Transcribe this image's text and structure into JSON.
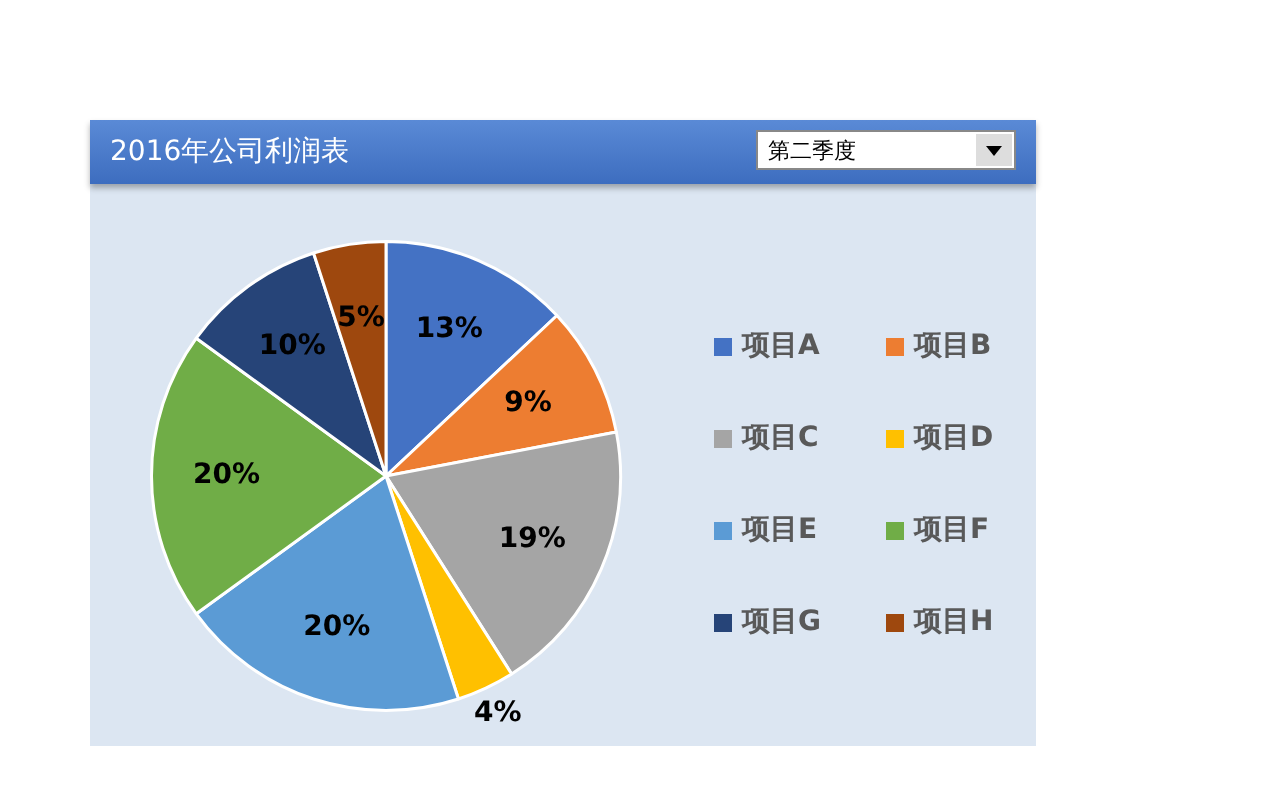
{
  "chart_data": {
    "type": "pie",
    "title": "2016年公司利润表",
    "annotations": [
      "第二季度"
    ],
    "categories": [
      "项目A",
      "项目B",
      "项目C",
      "项目D",
      "项目E",
      "项目F",
      "项目G",
      "项目H"
    ],
    "values": [
      13,
      9,
      19,
      4,
      20,
      20,
      10,
      5
    ],
    "colors": [
      "#4472c4",
      "#ed7d31",
      "#a5a5a5",
      "#ffc000",
      "#5b9bd5",
      "#70ad47",
      "#264478",
      "#9e480e"
    ],
    "value_labels": [
      "13%",
      "9%",
      "19%",
      "4%",
      "20%",
      "20%",
      "10%",
      "5%"
    ],
    "legend": "right"
  }
}
